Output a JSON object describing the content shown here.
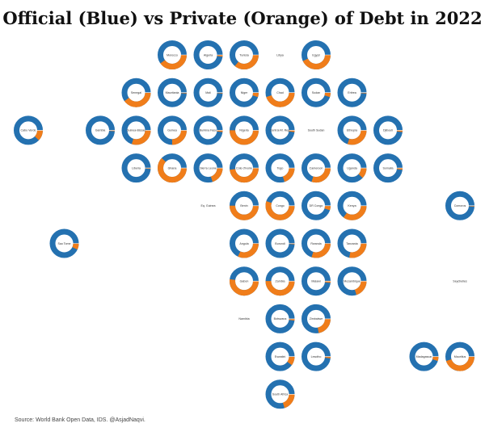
{
  "title": "Official (Blue) vs Private (Orange) of Debt in 2022",
  "source": "Source: World Bank Open Data, IDS. @AsjadNaqvi.",
  "colors": {
    "official": "#2471b0",
    "private": "#f07d1a"
  },
  "chart_data": {
    "type": "pie",
    "variant": "donut tile map",
    "title": "Official (Blue) vs Private (Orange) of Debt in 2022",
    "series": [
      {
        "name": "Official",
        "color": "#2471b0"
      },
      {
        "name": "Private",
        "color": "#f07d1a"
      }
    ],
    "countries": [
      {
        "name": "Morocco",
        "row": 0,
        "col": 4,
        "private_share": 0.4
      },
      {
        "name": "Algeria",
        "row": 0,
        "col": 5,
        "private_share": 0.02
      },
      {
        "name": "Tunisia",
        "row": 0,
        "col": 6,
        "private_share": 0.36
      },
      {
        "name": "Libya",
        "row": 0,
        "col": 7,
        "private_share": null
      },
      {
        "name": "Egypt",
        "row": 0,
        "col": 8,
        "private_share": 0.43
      },
      {
        "name": "Senegal",
        "row": 1,
        "col": 3,
        "private_share": 0.4
      },
      {
        "name": "Mauritania",
        "row": 1,
        "col": 4,
        "private_share": 0.01
      },
      {
        "name": "Mali",
        "row": 1,
        "col": 5,
        "private_share": 0.01
      },
      {
        "name": "Niger",
        "row": 1,
        "col": 6,
        "private_share": 0.05
      },
      {
        "name": "Chad",
        "row": 1,
        "col": 7,
        "private_share": 0.45
      },
      {
        "name": "Sudan",
        "row": 1,
        "col": 8,
        "private_share": 0.05
      },
      {
        "name": "Eritrea",
        "row": 1,
        "col": 9,
        "private_share": 0.01
      },
      {
        "name": "Cabo Verde",
        "row": 2,
        "col": 0,
        "private_share": 0.12
      },
      {
        "name": "Gambia",
        "row": 2,
        "col": 2,
        "private_share": 0.01
      },
      {
        "name": "Guinea-Bissau",
        "row": 2,
        "col": 3,
        "private_share": 0.3
      },
      {
        "name": "Guinea",
        "row": 2,
        "col": 4,
        "private_share": 0.25
      },
      {
        "name": "Burkina Faso",
        "row": 2,
        "col": 5,
        "private_share": 0.02
      },
      {
        "name": "Nigeria",
        "row": 2,
        "col": 6,
        "private_share": 0.5
      },
      {
        "name": "Central Af. Rep.",
        "row": 2,
        "col": 7,
        "private_share": 0.02
      },
      {
        "name": "South Sudan",
        "row": 2,
        "col": 8,
        "private_share": null
      },
      {
        "name": "Ethiopia",
        "row": 2,
        "col": 9,
        "private_share": 0.3
      },
      {
        "name": "Djibouti",
        "row": 2,
        "col": 10,
        "private_share": 0.02
      },
      {
        "name": "Liberia",
        "row": 3,
        "col": 3,
        "private_share": 0.01
      },
      {
        "name": "Ghana",
        "row": 3,
        "col": 4,
        "private_share": 0.62
      },
      {
        "name": "Sierra Leone",
        "row": 3,
        "col": 5,
        "private_share": 0.2
      },
      {
        "name": "Cote d'Ivoire",
        "row": 3,
        "col": 6,
        "private_share": 0.48
      },
      {
        "name": "Togo",
        "row": 3,
        "col": 7,
        "private_share": 0.2
      },
      {
        "name": "Cameroon",
        "row": 3,
        "col": 8,
        "private_share": 0.3
      },
      {
        "name": "Uganda",
        "row": 3,
        "col": 9,
        "private_share": 0.12
      },
      {
        "name": "Somalia",
        "row": 3,
        "col": 10,
        "private_share": 0.02
      },
      {
        "name": "Eq. Guinea",
        "row": 4,
        "col": 5,
        "private_share": null
      },
      {
        "name": "Benin",
        "row": 4,
        "col": 6,
        "private_share": 0.5
      },
      {
        "name": "Congo",
        "row": 4,
        "col": 7,
        "private_share": 0.55
      },
      {
        "name": "DR Congo",
        "row": 4,
        "col": 8,
        "private_share": 0.05
      },
      {
        "name": "Kenya",
        "row": 4,
        "col": 9,
        "private_share": 0.35
      },
      {
        "name": "Comoros",
        "row": 4,
        "col": 12,
        "private_share": 0.01
      },
      {
        "name": "Sao Tome",
        "row": 5,
        "col": 1,
        "private_share": 0.07
      },
      {
        "name": "Angola",
        "row": 5,
        "col": 6,
        "private_share": 0.32
      },
      {
        "name": "Burundi",
        "row": 5,
        "col": 7,
        "private_share": 0.01
      },
      {
        "name": "Rwanda",
        "row": 5,
        "col": 8,
        "private_share": 0.3
      },
      {
        "name": "Tanzania",
        "row": 5,
        "col": 9,
        "private_share": 0.28
      },
      {
        "name": "Gabon",
        "row": 6,
        "col": 6,
        "private_share": 0.52
      },
      {
        "name": "Zambia",
        "row": 6,
        "col": 7,
        "private_share": 0.5
      },
      {
        "name": "Malawi",
        "row": 6,
        "col": 8,
        "private_share": 0.02
      },
      {
        "name": "Mozambique",
        "row": 6,
        "col": 9,
        "private_share": 0.2
      },
      {
        "name": "Seychelles",
        "row": 6,
        "col": 12,
        "private_share": null
      },
      {
        "name": "Namibia",
        "row": 7,
        "col": 6,
        "private_share": null
      },
      {
        "name": "Botswana",
        "row": 7,
        "col": 7,
        "private_share": 0.02
      },
      {
        "name": "Zimbabwe",
        "row": 7,
        "col": 8,
        "private_share": 0.22
      },
      {
        "name": "Eswatini",
        "row": 8,
        "col": 7,
        "private_share": 0.1
      },
      {
        "name": "Lesotho",
        "row": 8,
        "col": 8,
        "private_share": 0.02
      },
      {
        "name": "Madagascar",
        "row": 8,
        "col": 11,
        "private_share": 0.05
      },
      {
        "name": "Mauritius",
        "row": 8,
        "col": 12,
        "private_share": 0.45
      },
      {
        "name": "South Africa",
        "row": 9,
        "col": 7,
        "private_share": 0.2
      }
    ]
  }
}
